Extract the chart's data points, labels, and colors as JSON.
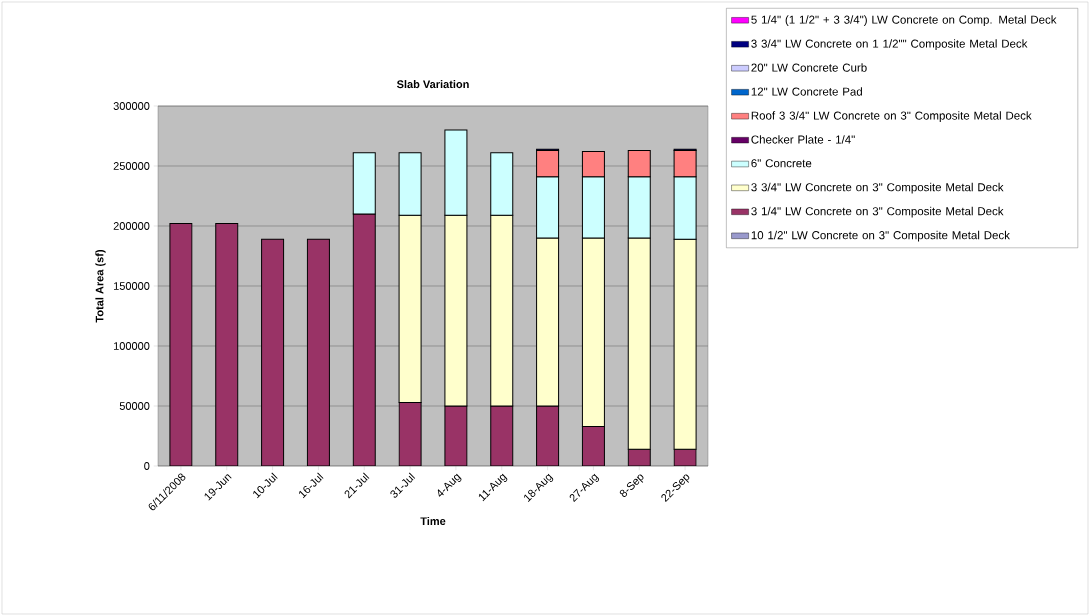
{
  "chart_data": {
    "type": "bar",
    "stacked": true,
    "title": "Slab Variation",
    "xlabel": "Time",
    "ylabel": "Total Area (sf)",
    "categories": [
      "6/11/2008",
      "19-Jun",
      "10-Jul",
      "16-Jul",
      "21-Jul",
      "31-Jul",
      "4-Aug",
      "11-Aug",
      "18-Aug",
      "27-Aug",
      "8-Sep",
      "22-Sep"
    ],
    "series": [
      {
        "name": "10 1/2\" LW Concrete on 3\" Composite Metal Deck",
        "color": "#9999cc",
        "values": [
          null,
          null,
          null,
          null,
          null,
          null,
          null,
          null,
          null,
          null,
          null,
          null
        ]
      },
      {
        "name": "3 1/4\" LW Concrete on 3\" Composite Metal Deck",
        "color": "#993366",
        "values": [
          202000,
          202000,
          189000,
          189000,
          210000,
          53000,
          50000,
          50000,
          50000,
          33000,
          14000,
          14000
        ]
      },
      {
        "name": "3 3/4\" LW Concrete on 3\" Composite Metal Deck",
        "color": "#ffffcc",
        "values": [
          null,
          null,
          null,
          null,
          null,
          156000,
          159000,
          159000,
          140000,
          157000,
          176000,
          175000
        ]
      },
      {
        "name": "6\" Concrete",
        "color": "#ccffff",
        "values": [
          null,
          null,
          null,
          null,
          51000,
          52000,
          71000,
          52000,
          51000,
          51000,
          51000,
          52000
        ]
      },
      {
        "name": "Checker Plate - 1/4\"",
        "color": "#660066",
        "values": [
          null,
          null,
          null,
          null,
          null,
          null,
          null,
          null,
          null,
          null,
          null,
          null
        ]
      },
      {
        "name": "Roof 3 3/4\" LW Concrete on 3\" Composite Metal Deck",
        "color": "#ff8080",
        "values": [
          null,
          null,
          null,
          null,
          null,
          null,
          null,
          null,
          22000,
          21000,
          22000,
          22000
        ]
      },
      {
        "name": "12\" LW Concrete Pad",
        "color": "#0066cc",
        "values": [
          null,
          null,
          null,
          null,
          null,
          null,
          null,
          null,
          null,
          null,
          null,
          null
        ]
      },
      {
        "name": "20\" LW Concrete Curb",
        "color": "#ccccff",
        "values": [
          null,
          null,
          null,
          null,
          null,
          null,
          null,
          null,
          null,
          null,
          null,
          null
        ]
      },
      {
        "name": "3 3/4\" LW Concrete on 1 1/2\"\" Composite Metal Deck",
        "color": "#000080",
        "values": [
          null,
          null,
          null,
          null,
          null,
          null,
          null,
          null,
          1000,
          null,
          null,
          1000
        ]
      },
      {
        "name": "5 1/4\" (1 1/2\" + 3 3/4\") LW Concrete on Comp. Metal Deck",
        "color": "#ff00ff",
        "values": [
          null,
          null,
          null,
          null,
          null,
          null,
          null,
          null,
          null,
          null,
          null,
          null
        ]
      }
    ],
    "ylim": [
      0,
      300000
    ],
    "yticks": [
      0,
      50000,
      100000,
      150000,
      200000,
      250000,
      300000
    ],
    "grid": "y",
    "legend": "right"
  }
}
